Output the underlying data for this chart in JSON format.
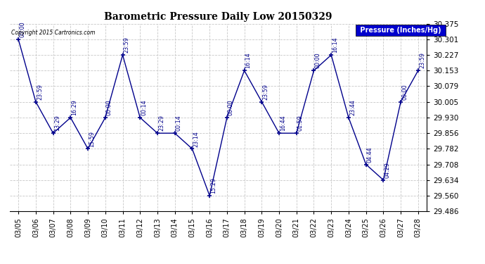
{
  "title": "Barometric Pressure Daily Low 20150329",
  "copyright_text": "Copyright 2015 Cartronics.com",
  "background_color": "#ffffff",
  "line_color": "#00008B",
  "grid_color": "#C8C8C8",
  "ylim_min": 29.486,
  "ylim_max": 30.375,
  "yticks": [
    29.486,
    29.56,
    29.634,
    29.708,
    29.782,
    29.856,
    29.93,
    30.005,
    30.079,
    30.153,
    30.227,
    30.301,
    30.375
  ],
  "dates": [
    "03/05",
    "03/06",
    "03/07",
    "03/08",
    "03/09",
    "03/10",
    "03/11",
    "03/12",
    "03/13",
    "03/14",
    "03/15",
    "03/16",
    "03/17",
    "03/18",
    "03/19",
    "03/20",
    "03/21",
    "03/22",
    "03/23",
    "03/24",
    "03/25",
    "03/26",
    "03/27",
    "03/28"
  ],
  "pressures": [
    30.301,
    30.005,
    29.856,
    29.93,
    29.782,
    29.93,
    30.227,
    29.93,
    29.856,
    29.856,
    29.782,
    29.56,
    29.93,
    30.153,
    30.005,
    29.856,
    29.856,
    30.153,
    30.227,
    29.93,
    29.708,
    29.634,
    30.005,
    30.153
  ],
  "time_labels": [
    "00:00",
    "23:59",
    "13:29",
    "16:29",
    "15:59",
    "00:00",
    "23:59",
    "00:14",
    "23:29",
    "00:14",
    "23:14",
    "15:29",
    "00:00",
    "16:14",
    "23:59",
    "16:44",
    "01:59",
    "00:00",
    "16:14",
    "23:44",
    "04:44",
    "04:29",
    "00:00",
    "23:59"
  ],
  "legend_label": "Pressure (Inches/Hg)",
  "legend_bg": "#0000CD",
  "legend_text_color": "#ffffff"
}
